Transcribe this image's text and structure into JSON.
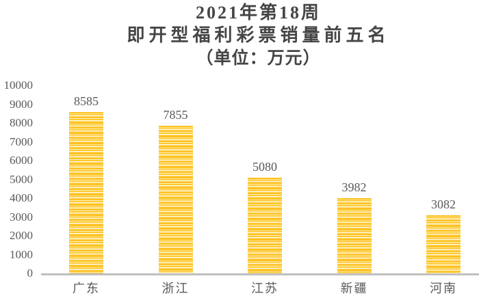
{
  "title": {
    "line1": "2021年第18周",
    "line2": "即开型福利彩票销量前五名",
    "line3": "（单位：万元）"
  },
  "chart_data": {
    "type": "bar",
    "title": "2021年第18周 即开型福利彩票销量前五名（单位：万元）",
    "categories": [
      "广东",
      "浙江",
      "江苏",
      "新疆",
      "河南"
    ],
    "values": [
      8585,
      7855,
      5080,
      3982,
      3082
    ],
    "data_labels": [
      "8585",
      "7855",
      "5080",
      "3982",
      "3082"
    ],
    "xlabel": "",
    "ylabel": "",
    "ylim": [
      0,
      10000
    ],
    "ytick_step": 1000,
    "yticks": [
      0,
      1000,
      2000,
      3000,
      4000,
      5000,
      6000,
      7000,
      8000,
      9000,
      10000
    ],
    "grid": false,
    "legend": "none",
    "bar_color": "#FFC222",
    "bar_pattern": "horizontal-stripes",
    "bar_stripe_color": "#FFF6D8",
    "axis_line_color": "#BFBFBF",
    "tick_label_color": "#595959",
    "title_color": "#454545"
  }
}
